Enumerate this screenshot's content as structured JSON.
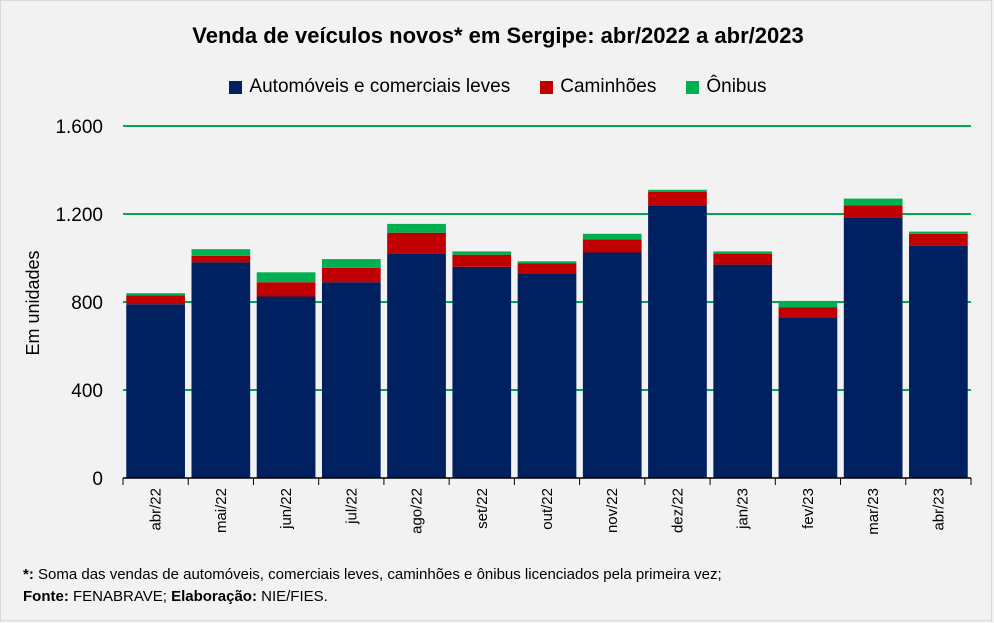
{
  "chart_data": {
    "type": "bar",
    "stacked": true,
    "title": "Venda de veículos novos* em Sergipe: abr/2022 a abr/2023",
    "xlabel": "",
    "ylabel": "Em unidades",
    "ylim": [
      0,
      1600
    ],
    "yticks": [
      0,
      400,
      800,
      1200,
      1600
    ],
    "ytick_labels": [
      "0",
      "400",
      "800",
      "1.200",
      "1.600"
    ],
    "grid": true,
    "legend_position": "top-center",
    "categories": [
      "abr/22",
      "mai/22",
      "jun/22",
      "jul/22",
      "ago/22",
      "set/22",
      "out/22",
      "nov/22",
      "dez/22",
      "jan/23",
      "fev/23",
      "mar/23",
      "abr/23"
    ],
    "series": [
      {
        "name": "Automóveis e comerciais leves",
        "color": "#002060",
        "values": [
          790,
          980,
          825,
          890,
          1020,
          960,
          930,
          1025,
          1240,
          970,
          730,
          1185,
          1055
        ]
      },
      {
        "name": "Caminhões",
        "color": "#c00000",
        "values": [
          40,
          30,
          65,
          65,
          95,
          55,
          45,
          60,
          60,
          50,
          45,
          55,
          55
        ]
      },
      {
        "name": "Ônibus",
        "color": "#00b050",
        "values": [
          10,
          30,
          45,
          40,
          40,
          15,
          10,
          25,
          10,
          10,
          30,
          30,
          10
        ]
      }
    ],
    "footnote": {
      "line1_marker": "*:",
      "line1_text": " Soma das vendas de automóveis, comerciais leves, caminhões e ônibus licenciados pela primeira vez;",
      "source_label": "Fonte:",
      "source_text": " FENABRAVE;",
      "elab_label": " Elaboração:",
      "elab_text": " NIE/FIES."
    }
  },
  "colors": {
    "plot_bg": "#f2f2f2",
    "grid": "#00a651",
    "axis": "#000000"
  }
}
